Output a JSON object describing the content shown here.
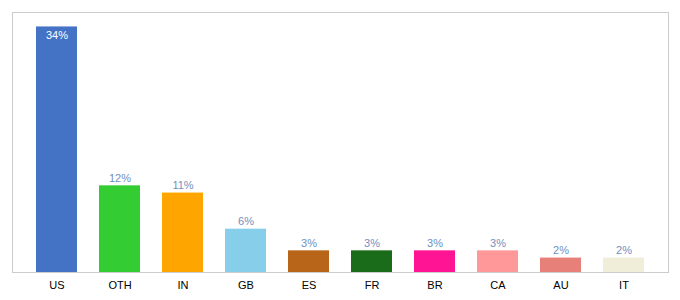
{
  "chart_data": {
    "type": "bar",
    "categories": [
      "US",
      "OTH",
      "IN",
      "GB",
      "ES",
      "FR",
      "BR",
      "CA",
      "AU",
      "IT"
    ],
    "values": [
      34,
      12,
      11,
      6,
      3,
      3,
      3,
      3,
      2,
      2
    ],
    "value_labels": [
      "34%",
      "12%",
      "11%",
      "6%",
      "3%",
      "3%",
      "3%",
      "3%",
      "2%",
      "2%"
    ],
    "colors": [
      "#4472C4",
      "#33CC33",
      "#FFA500",
      "#87CEEB",
      "#B8651A",
      "#1A6B1A",
      "#FF1493",
      "#FF9999",
      "#E8807A",
      "#F0EDD8"
    ],
    "ylim": [
      0,
      36
    ],
    "data_labels": true,
    "tick_labels": "x",
    "grid": false
  }
}
